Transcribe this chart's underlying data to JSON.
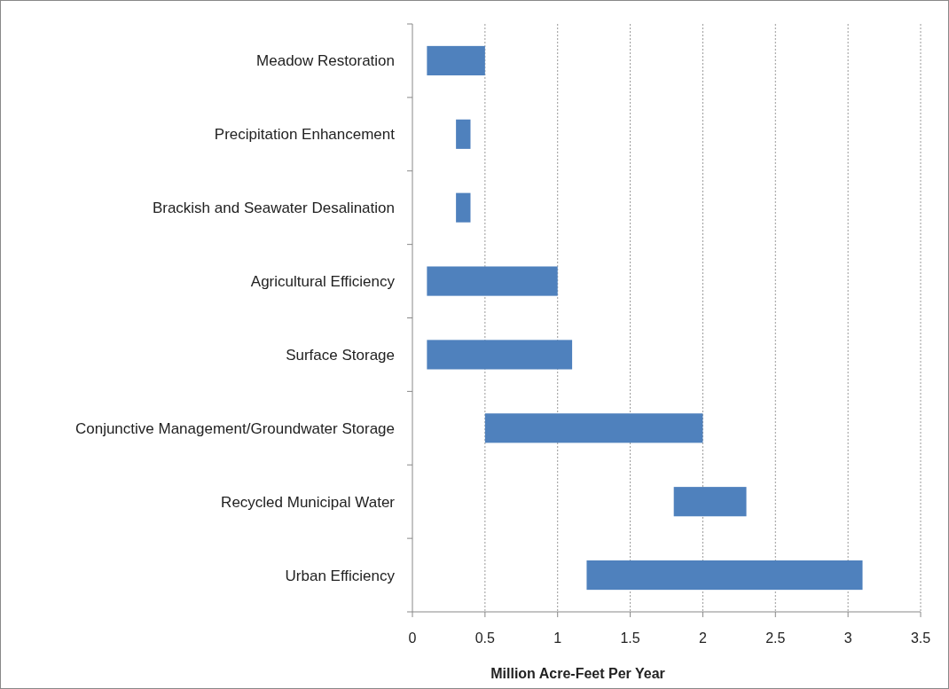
{
  "chart_data": {
    "type": "bar",
    "orientation": "horizontal",
    "xlabel": "Million Acre-Feet Per Year",
    "categories": [
      "Meadow Restoration",
      "Precipitation Enhancement",
      "Brackish and Seawater Desalination",
      "Agricultural Efficiency",
      "Surface Storage",
      "Conjunctive Management/Groundwater Storage",
      "Recycled Municipal Water",
      "Urban Efficiency"
    ],
    "base": [
      0.1,
      0.3,
      0.3,
      0.1,
      0.1,
      0.5,
      1.8,
      1.2
    ],
    "values": [
      0.4,
      0.1,
      0.1,
      0.9,
      1.0,
      1.5,
      0.5,
      1.9
    ],
    "color": "#4f81bd",
    "xlim": [
      0,
      3.5
    ],
    "xticks": [
      0,
      0.5,
      1,
      1.5,
      2,
      2.5,
      3,
      3.5
    ],
    "grid": "x"
  }
}
